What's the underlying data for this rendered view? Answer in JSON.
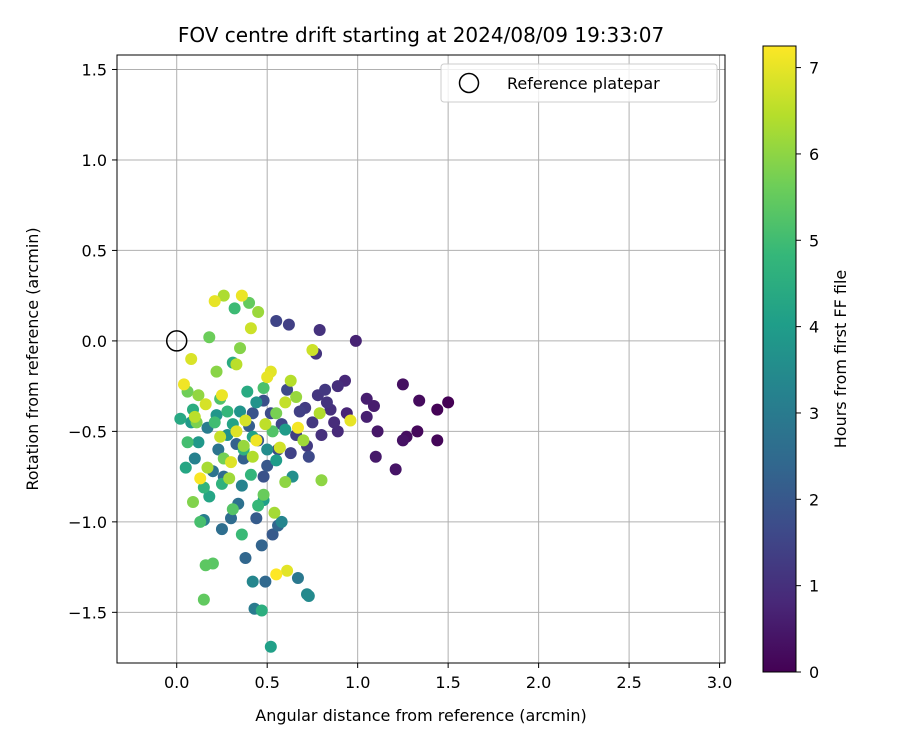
{
  "chart_data": {
    "type": "scatter",
    "title": "FOV centre drift starting at 2024/08/09 19:33:07",
    "xlabel": "Angular distance from reference (arcmin)",
    "ylabel": "Rotation from reference (arcmin)",
    "xlim": [
      -0.33,
      3.03
    ],
    "ylim": [
      -1.78,
      1.58
    ],
    "xticks": [
      0.0,
      0.5,
      1.0,
      1.5,
      2.0,
      2.5,
      3.0
    ],
    "xtick_labels": [
      "0.0",
      "0.5",
      "1.0",
      "1.5",
      "2.0",
      "2.5",
      "3.0"
    ],
    "yticks": [
      -1.5,
      -1.0,
      -0.5,
      0.0,
      0.5,
      1.0,
      1.5
    ],
    "ytick_labels": [
      "−1.5",
      "−1.0",
      "−0.5",
      "0.0",
      "0.5",
      "1.0",
      "1.5"
    ],
    "grid": true,
    "legend": {
      "position": "top-right",
      "entries": [
        "Reference platepar"
      ]
    },
    "reference_point": {
      "x": 0.0,
      "y": 0.0
    },
    "colorbar": {
      "label": "Hours from first FF file",
      "colormap": "viridis",
      "range": [
        0,
        7.25
      ],
      "ticks": [
        0,
        1,
        2,
        3,
        4,
        5,
        6,
        7
      ],
      "tick_labels": [
        "0",
        "1",
        "2",
        "3",
        "4",
        "5",
        "6",
        "7"
      ],
      "stops": [
        "#440154",
        "#482878",
        "#3e4989",
        "#31688e",
        "#26828e",
        "#1f9e89",
        "#35b779",
        "#6ece58",
        "#b5de2b",
        "#fde725"
      ]
    },
    "points": [
      [
        1.5,
        -0.34,
        0.0
      ],
      [
        1.44,
        -0.38,
        0.05
      ],
      [
        1.44,
        -0.55,
        0.1
      ],
      [
        1.33,
        -0.5,
        0.15
      ],
      [
        1.34,
        -0.33,
        0.2
      ],
      [
        1.27,
        -0.53,
        0.25
      ],
      [
        1.25,
        -0.24,
        0.3
      ],
      [
        1.25,
        -0.55,
        0.35
      ],
      [
        1.21,
        -0.71,
        0.4
      ],
      [
        1.11,
        -0.5,
        0.45
      ],
      [
        1.1,
        -0.64,
        0.5
      ],
      [
        1.09,
        -0.36,
        0.55
      ],
      [
        1.05,
        -0.32,
        0.6
      ],
      [
        1.05,
        -0.42,
        0.65
      ],
      [
        0.99,
        0.0,
        0.7
      ],
      [
        0.94,
        -0.4,
        0.75
      ],
      [
        0.93,
        -0.22,
        0.8
      ],
      [
        0.89,
        -0.5,
        0.85
      ],
      [
        0.87,
        -0.45,
        0.9
      ],
      [
        0.89,
        -0.25,
        0.95
      ],
      [
        0.85,
        -0.38,
        1.0
      ],
      [
        0.8,
        -0.52,
        1.0
      ],
      [
        0.79,
        0.06,
        1.05
      ],
      [
        0.77,
        -0.07,
        1.1
      ],
      [
        0.83,
        -0.34,
        1.1
      ],
      [
        0.78,
        -0.3,
        1.15
      ],
      [
        0.82,
        -0.27,
        1.2
      ],
      [
        0.75,
        -0.45,
        1.2
      ],
      [
        0.72,
        -0.58,
        1.25
      ],
      [
        0.71,
        -0.37,
        1.3
      ],
      [
        0.66,
        -0.52,
        1.35
      ],
      [
        0.62,
        0.09,
        1.4
      ],
      [
        0.68,
        -0.39,
        1.4
      ],
      [
        0.63,
        -0.62,
        1.45
      ],
      [
        0.55,
        0.11,
        1.5
      ],
      [
        0.58,
        -0.46,
        1.55
      ],
      [
        0.73,
        -0.64,
        1.6
      ],
      [
        0.61,
        -0.27,
        1.65
      ],
      [
        0.52,
        -0.4,
        1.7
      ],
      [
        0.56,
        -0.6,
        1.75
      ],
      [
        0.48,
        -0.33,
        1.8
      ],
      [
        0.48,
        -0.75,
        1.85
      ],
      [
        0.42,
        -0.4,
        1.9
      ],
      [
        0.45,
        -0.55,
        1.95
      ],
      [
        0.5,
        -0.69,
        2.0
      ],
      [
        0.53,
        -1.07,
        2.05
      ],
      [
        0.44,
        -0.98,
        2.1
      ],
      [
        0.4,
        -0.47,
        2.15
      ],
      [
        0.37,
        -0.65,
        2.2
      ],
      [
        0.33,
        -0.57,
        2.25
      ],
      [
        0.47,
        -1.13,
        2.3
      ],
      [
        0.56,
        -1.02,
        2.35
      ],
      [
        0.38,
        -1.2,
        2.4
      ],
      [
        0.49,
        -1.33,
        2.45
      ],
      [
        0.26,
        -0.75,
        2.5
      ],
      [
        0.3,
        -0.98,
        2.55
      ],
      [
        0.25,
        -1.04,
        2.6
      ],
      [
        0.34,
        -0.9,
        2.7
      ],
      [
        0.2,
        -0.72,
        2.75
      ],
      [
        0.23,
        -0.6,
        2.8
      ],
      [
        0.67,
        -1.31,
        2.9
      ],
      [
        0.43,
        -1.48,
        3.0
      ],
      [
        0.17,
        -0.48,
        3.05
      ],
      [
        0.15,
        -0.99,
        3.1
      ],
      [
        0.1,
        -0.65,
        3.2
      ],
      [
        0.36,
        -0.8,
        3.25
      ],
      [
        0.58,
        -1.0,
        3.3
      ],
      [
        0.42,
        -1.33,
        3.35
      ],
      [
        0.72,
        -1.4,
        3.4
      ],
      [
        0.73,
        -1.41,
        3.45
      ],
      [
        0.5,
        -0.6,
        3.5
      ],
      [
        0.64,
        -0.75,
        3.6
      ],
      [
        0.28,
        -0.52,
        3.65
      ],
      [
        0.44,
        -0.34,
        3.7
      ],
      [
        0.35,
        -0.39,
        3.75
      ],
      [
        0.22,
        -0.41,
        3.8
      ],
      [
        0.12,
        -0.56,
        3.85
      ],
      [
        0.08,
        -0.45,
        3.9
      ],
      [
        0.6,
        -0.49,
        3.95
      ],
      [
        0.55,
        -0.66,
        4.0
      ],
      [
        0.48,
        -0.88,
        4.05
      ],
      [
        0.52,
        -1.69,
        4.1
      ],
      [
        0.42,
        -0.53,
        4.15
      ],
      [
        0.31,
        -0.46,
        4.2
      ],
      [
        0.18,
        -0.86,
        4.25
      ],
      [
        0.05,
        -0.7,
        4.3
      ],
      [
        0.02,
        -0.43,
        4.35
      ],
      [
        0.39,
        -0.28,
        4.4
      ],
      [
        0.31,
        -0.12,
        4.45
      ],
      [
        0.09,
        -0.38,
        4.5
      ],
      [
        0.47,
        -1.49,
        4.55
      ],
      [
        0.37,
        -0.6,
        4.6
      ],
      [
        0.25,
        -0.79,
        4.65
      ],
      [
        0.15,
        -0.81,
        4.7
      ],
      [
        0.41,
        -0.74,
        4.75
      ],
      [
        0.28,
        -0.39,
        4.8
      ],
      [
        0.45,
        -0.91,
        4.85
      ],
      [
        0.36,
        -1.07,
        4.9
      ],
      [
        0.32,
        0.18,
        4.95
      ],
      [
        0.21,
        -0.45,
        5.0
      ],
      [
        0.06,
        -0.56,
        5.05
      ],
      [
        0.13,
        -1.0,
        5.1
      ],
      [
        0.48,
        -0.26,
        5.15
      ],
      [
        0.24,
        -0.32,
        5.2
      ],
      [
        0.53,
        -0.5,
        5.25
      ],
      [
        0.31,
        -0.93,
        5.3
      ],
      [
        0.2,
        -1.23,
        5.35
      ],
      [
        0.16,
        -1.24,
        5.4
      ],
      [
        0.15,
        -1.43,
        5.45
      ],
      [
        0.4,
        0.21,
        5.5
      ],
      [
        0.48,
        -0.85,
        5.55
      ],
      [
        0.18,
        0.02,
        5.6
      ],
      [
        0.06,
        -0.28,
        5.65
      ],
      [
        0.26,
        -0.65,
        5.7
      ],
      [
        0.55,
        -0.4,
        5.75
      ],
      [
        0.11,
        -0.45,
        5.8
      ],
      [
        0.09,
        -0.89,
        5.85
      ],
      [
        0.35,
        -0.04,
        5.9
      ],
      [
        0.22,
        -0.17,
        5.95
      ],
      [
        0.6,
        -0.78,
        6.0
      ],
      [
        0.8,
        -0.77,
        6.0
      ],
      [
        0.12,
        -0.3,
        6.05
      ],
      [
        0.37,
        -0.58,
        6.1
      ],
      [
        0.66,
        -0.31,
        6.1
      ],
      [
        0.45,
        0.16,
        6.15
      ],
      [
        0.29,
        -0.76,
        6.2
      ],
      [
        0.7,
        -0.55,
        6.2
      ],
      [
        0.54,
        -0.95,
        6.25
      ],
      [
        0.17,
        -0.7,
        6.3
      ],
      [
        0.26,
        0.25,
        6.35
      ],
      [
        0.79,
        -0.4,
        6.4
      ],
      [
        0.42,
        -0.64,
        6.4
      ],
      [
        0.63,
        -0.22,
        6.45
      ],
      [
        0.1,
        -0.42,
        6.5
      ],
      [
        0.33,
        -0.13,
        6.5
      ],
      [
        0.49,
        -0.46,
        6.55
      ],
      [
        0.6,
        -0.34,
        6.6
      ],
      [
        0.24,
        -0.53,
        6.65
      ],
      [
        0.41,
        0.07,
        6.7
      ],
      [
        0.75,
        -0.05,
        6.7
      ],
      [
        0.57,
        -0.59,
        6.75
      ],
      [
        0.16,
        -0.35,
        6.8
      ],
      [
        0.38,
        -0.44,
        6.8
      ],
      [
        0.08,
        -0.1,
        6.85
      ],
      [
        0.3,
        -0.67,
        6.9
      ],
      [
        0.52,
        -0.17,
        6.95
      ],
      [
        0.21,
        0.22,
        7.0
      ],
      [
        0.36,
        0.25,
        7.05
      ],
      [
        0.44,
        -0.55,
        7.1
      ],
      [
        0.67,
        -0.48,
        7.15
      ],
      [
        0.13,
        -0.76,
        7.2
      ],
      [
        0.55,
        -1.29,
        7.25
      ],
      [
        0.96,
        -0.44,
        7.0
      ],
      [
        0.61,
        -1.27,
        6.95
      ],
      [
        0.5,
        -0.2,
        7.0
      ],
      [
        0.04,
        -0.24,
        7.1
      ],
      [
        0.25,
        -0.3,
        7.05
      ],
      [
        0.33,
        -0.5,
        6.9
      ]
    ]
  }
}
